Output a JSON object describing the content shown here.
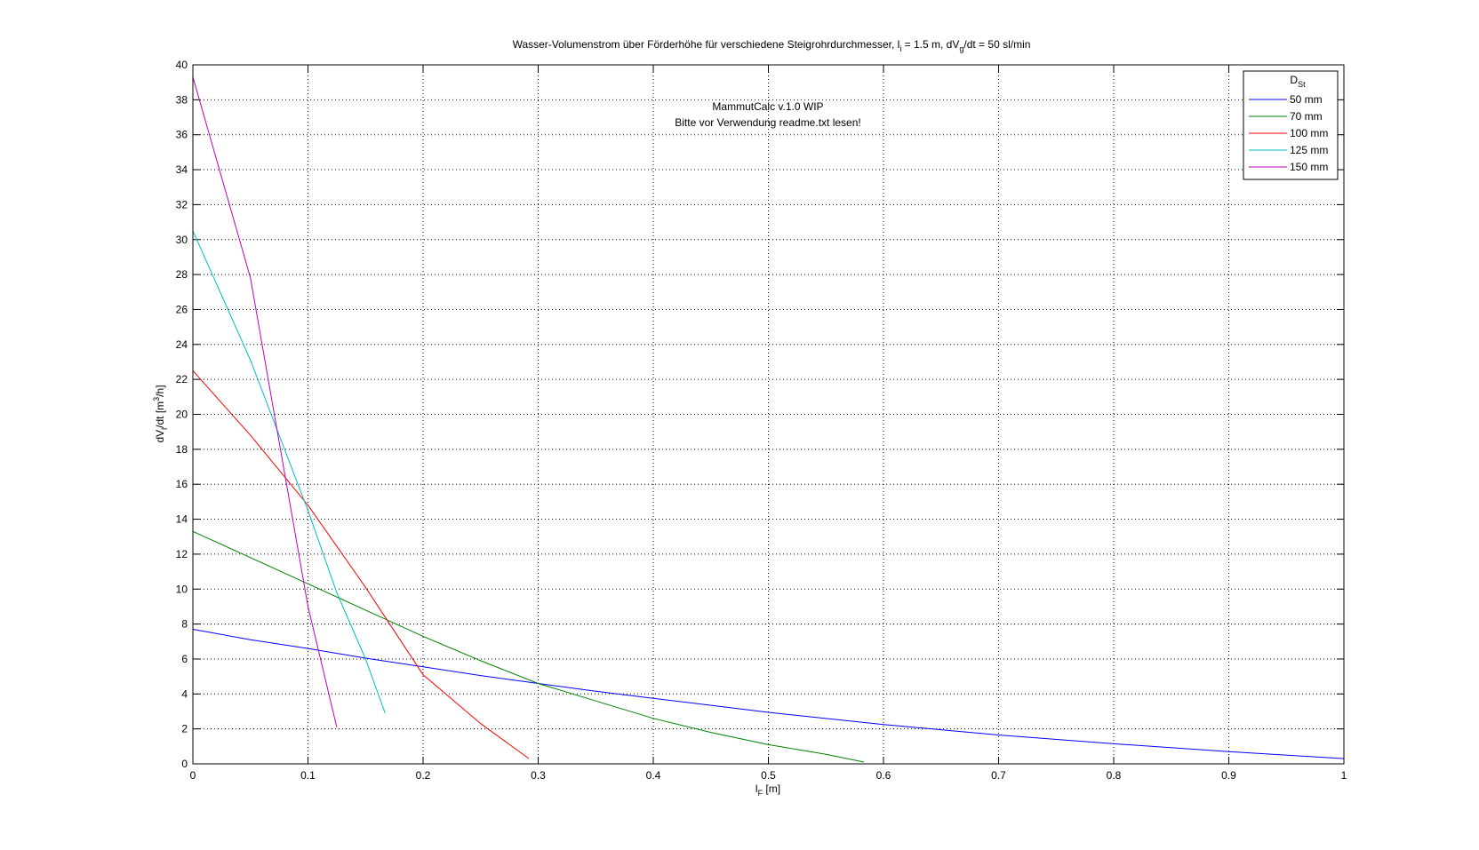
{
  "figure": {
    "title_main": "Wasser-Volumenstrom über Förderhöhe für verschiedene Steigrohrdurchmesser, l",
    "title_sub1": "i",
    "title_mid": " = 1.5 m, dV",
    "title_sub2": "g",
    "title_end": "/dt = 50 sl/min",
    "watermark_line1": "MammutCalc v.1.0 WIP",
    "watermark_line2": "Bitte vor Verwendung readme.txt lesen!",
    "xlabel_main": "l",
    "xlabel_sub": "F",
    "xlabel_unit": " [m]",
    "ylabel_a": "dV",
    "ylabel_sub": "l",
    "ylabel_b": "/dt [m",
    "ylabel_sup": "3",
    "ylabel_c": "/h]",
    "legend_title_main": "D",
    "legend_title_sub": "St"
  },
  "chart_data": {
    "type": "line",
    "grid": true,
    "legend_position": "top-right",
    "xlim": [
      0,
      1
    ],
    "ylim": [
      0,
      40
    ],
    "xticks": [
      0,
      0.1,
      0.2,
      0.3,
      0.4,
      0.5,
      0.6,
      0.7,
      0.8,
      0.9,
      1
    ],
    "xtick_labels": [
      "0",
      "0.1",
      "0.2",
      "0.3",
      "0.4",
      "0.5",
      "0.6",
      "0.7",
      "0.8",
      "0.9",
      "1"
    ],
    "yticks": [
      0,
      2,
      4,
      6,
      8,
      10,
      12,
      14,
      16,
      18,
      20,
      22,
      24,
      26,
      28,
      30,
      32,
      34,
      36,
      38,
      40
    ],
    "ytick_labels": [
      "0",
      "2",
      "4",
      "6",
      "8",
      "10",
      "12",
      "14",
      "16",
      "18",
      "20",
      "22",
      "24",
      "26",
      "28",
      "30",
      "32",
      "34",
      "36",
      "38",
      "40"
    ],
    "series": [
      {
        "name": "50 mm",
        "color": "#0000ff",
        "points": [
          [
            0,
            7.7
          ],
          [
            0.05,
            7.1
          ],
          [
            0.1,
            6.6
          ],
          [
            0.15,
            6.05
          ],
          [
            0.2,
            5.55
          ],
          [
            0.25,
            5.05
          ],
          [
            0.3,
            4.6
          ],
          [
            0.35,
            4.15
          ],
          [
            0.4,
            3.75
          ],
          [
            0.5,
            2.95
          ],
          [
            0.6,
            2.25
          ],
          [
            0.7,
            1.65
          ],
          [
            0.8,
            1.15
          ],
          [
            0.9,
            0.7
          ],
          [
            1.0,
            0.3
          ]
        ]
      },
      {
        "name": "70 mm",
        "color": "#008000",
        "points": [
          [
            0,
            13.3
          ],
          [
            0.05,
            11.8
          ],
          [
            0.1,
            10.3
          ],
          [
            0.15,
            8.8
          ],
          [
            0.2,
            7.3
          ],
          [
            0.25,
            5.9
          ],
          [
            0.3,
            4.6
          ],
          [
            0.35,
            3.6
          ],
          [
            0.4,
            2.6
          ],
          [
            0.45,
            1.8
          ],
          [
            0.5,
            1.1
          ],
          [
            0.55,
            0.55
          ],
          [
            0.583,
            0.1
          ]
        ]
      },
      {
        "name": "100 mm",
        "color": "#ff0000",
        "points": [
          [
            0,
            22.5
          ],
          [
            0.05,
            18.8
          ],
          [
            0.1,
            14.8
          ],
          [
            0.15,
            10.1
          ],
          [
            0.2,
            5.1
          ],
          [
            0.25,
            2.3
          ],
          [
            0.292,
            0.3
          ]
        ]
      },
      {
        "name": "125 mm",
        "color": "#00bfbf",
        "points": [
          [
            0,
            30.5
          ],
          [
            0.05,
            23.1
          ],
          [
            0.1,
            14.5
          ],
          [
            0.125,
            9.8
          ],
          [
            0.15,
            6.0
          ],
          [
            0.167,
            2.9
          ]
        ]
      },
      {
        "name": "150 mm",
        "color": "#bf00bf",
        "points": [
          [
            0,
            39.3
          ],
          [
            0.05,
            27.8
          ],
          [
            0.1,
            9.0
          ],
          [
            0.125,
            2.1
          ]
        ]
      }
    ]
  }
}
